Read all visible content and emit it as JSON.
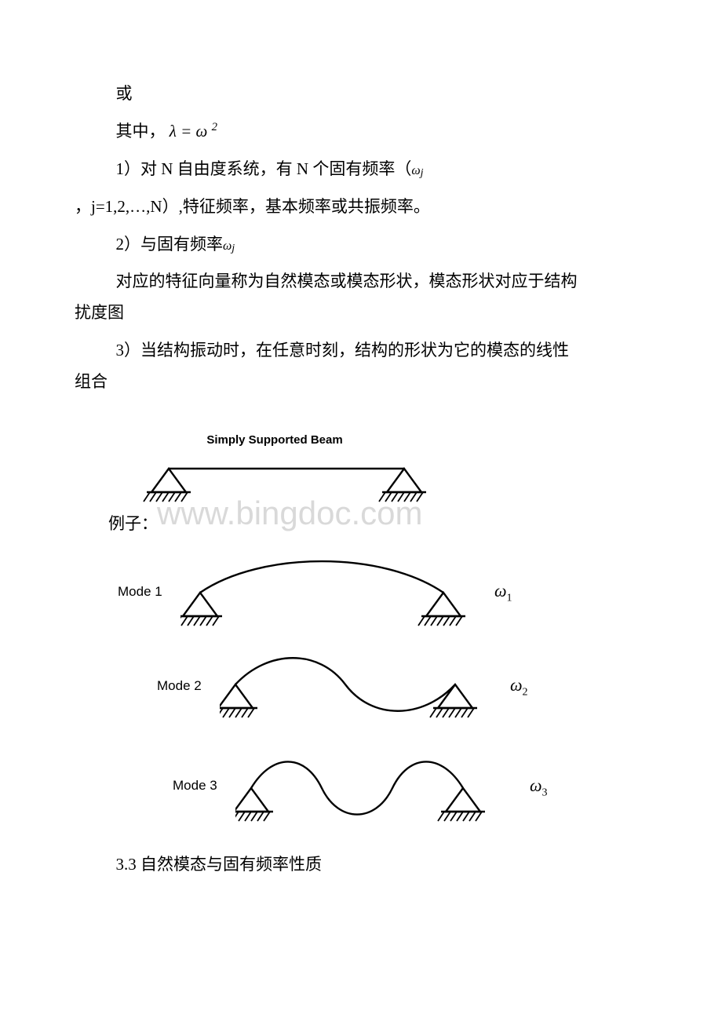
{
  "text": {
    "p1": "或",
    "p2_prefix": "其中，",
    "p2_lambda": "λ",
    "p2_eq": " = ",
    "p2_omega": "ω",
    "p2_exp": "2",
    "p3_prefix": "1）对 N 自由度系统，有 N 个固有频率（",
    "p3_omega": "ω",
    "p3_sub": "j",
    "p4": "，j=1,2,…,N）,特征频率，基本频率或共振频率。",
    "p5_prefix": "2）与固有频率",
    "p5_omega": "ω",
    "p5_sub": "j",
    "p6_line1": "对应的特征向量称为自然模态或模态形状，模态形状对应于结构",
    "p6_line2": "扰度图",
    "p7_line1": "3）当结构振动时，在任意时刻，结构的形状为它的模态的线性",
    "p7_line2": "组合",
    "example_label": "例子：",
    "section": "3.3 自然模态与固有频率性质"
  },
  "figure": {
    "title": "Simply Supported Beam",
    "watermark": "www.bingdoc.com",
    "modes": [
      {
        "label": "Mode 1",
        "freq": "ω",
        "freq_sub": "1"
      },
      {
        "label": "Mode 2",
        "freq": "ω",
        "freq_sub": "2"
      },
      {
        "label": "Mode 3",
        "freq": "ω",
        "freq_sub": "3"
      }
    ],
    "colors": {
      "stroke": "#000000",
      "hatch": "#000000",
      "bg": "#ffffff"
    },
    "support": {
      "tri_w": 44,
      "tri_h": 30,
      "hatch_n": 7,
      "hatch_gap": 8,
      "hatch_len": 12
    },
    "beam_span": 300,
    "line_width": 2.4
  }
}
